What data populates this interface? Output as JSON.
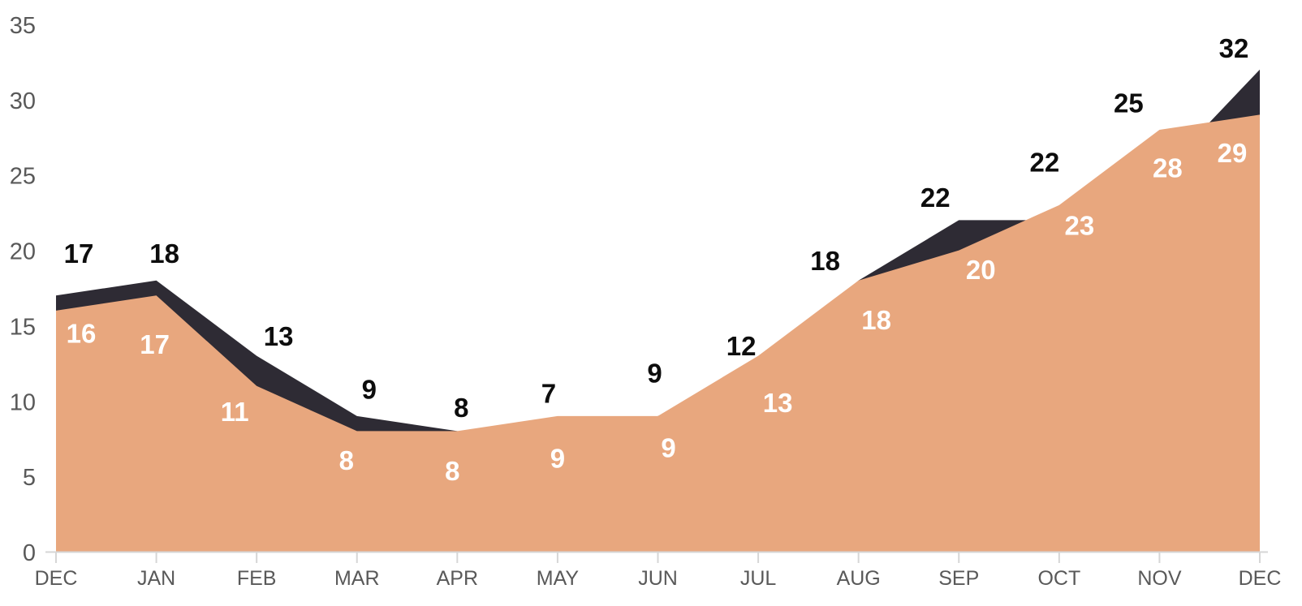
{
  "chart_data": {
    "type": "area",
    "title": "",
    "xlabel": "",
    "ylabel": "",
    "categories": [
      "DEC",
      "JAN",
      "FEB",
      "MAR",
      "APR",
      "MAY",
      "JUN",
      "JUL",
      "AUG",
      "SEP",
      "OCT",
      "NOV",
      "DEC"
    ],
    "series": [
      {
        "name": "dark",
        "color": "#2e2b34",
        "label_color": "#0d0d0d",
        "values": [
          17,
          18,
          13,
          9,
          8,
          7,
          9,
          12,
          18,
          22,
          22,
          25,
          32
        ]
      },
      {
        "name": "peach",
        "color": "#e8a77e",
        "label_color": "#ffffff",
        "values": [
          16,
          17,
          11,
          8,
          8,
          9,
          9,
          13,
          18,
          20,
          23,
          28,
          29
        ]
      }
    ],
    "ylim": [
      0,
      35
    ],
    "yticks": [
      0,
      5,
      10,
      15,
      20,
      25,
      30,
      35
    ],
    "grid": false,
    "legend": false,
    "data_labels": true,
    "axis_text_color": "#595959",
    "axis_line_color": "#d6d6d6"
  }
}
